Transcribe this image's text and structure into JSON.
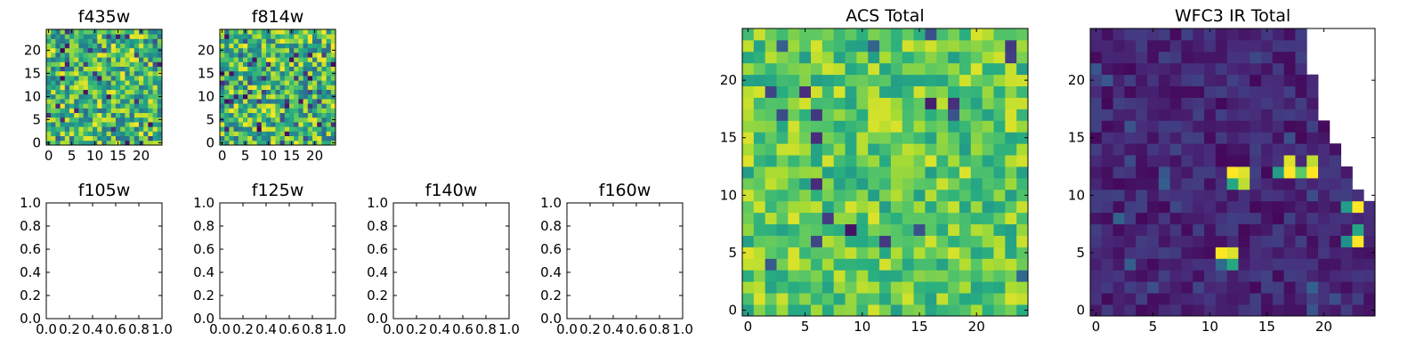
{
  "figure": {
    "colormap": "viridis",
    "background": "#ffffff",
    "axis_color": "#000000"
  },
  "chart_data": [
    {
      "id": "f435w",
      "type": "heatmap",
      "title": "f435w",
      "grid_size": [
        25,
        25
      ],
      "xlim": [
        -0.5,
        24.5
      ],
      "ylim": [
        -0.5,
        24.5
      ],
      "xticks": [
        0,
        5,
        10,
        15,
        20
      ],
      "yticks": [
        0,
        5,
        10,
        15,
        20
      ],
      "vrange": [
        0,
        1
      ],
      "empty": false,
      "description_seed": 435
    },
    {
      "id": "f814w",
      "type": "heatmap",
      "title": "f814w",
      "grid_size": [
        25,
        25
      ],
      "xlim": [
        -0.5,
        24.5
      ],
      "ylim": [
        -0.5,
        24.5
      ],
      "xticks": [
        0,
        5,
        10,
        15,
        20
      ],
      "yticks": [
        0,
        5,
        10,
        15,
        20
      ],
      "vrange": [
        0,
        1
      ],
      "empty": false,
      "description_seed": 814
    },
    {
      "id": "f105w",
      "type": "heatmap",
      "title": "f105w",
      "xlim": [
        0,
        1
      ],
      "ylim": [
        0,
        1
      ],
      "xticks": [
        "0.0",
        "0.2",
        "0.4",
        "0.6",
        "0.8",
        "1.0"
      ],
      "yticks": [
        "0.0",
        "0.2",
        "0.4",
        "0.6",
        "0.8",
        "1.0"
      ],
      "empty": true
    },
    {
      "id": "f125w",
      "type": "heatmap",
      "title": "f125w",
      "xlim": [
        0,
        1
      ],
      "ylim": [
        0,
        1
      ],
      "xticks": [
        "0.0",
        "0.2",
        "0.4",
        "0.6",
        "0.8",
        "1.0"
      ],
      "yticks": [
        "0.0",
        "0.2",
        "0.4",
        "0.6",
        "0.8",
        "1.0"
      ],
      "empty": true
    },
    {
      "id": "f140w",
      "type": "heatmap",
      "title": "f140w",
      "xlim": [
        0,
        1
      ],
      "ylim": [
        0,
        1
      ],
      "xticks": [
        "0.0",
        "0.2",
        "0.4",
        "0.6",
        "0.8",
        "1.0"
      ],
      "yticks": [
        "0.0",
        "0.2",
        "0.4",
        "0.6",
        "0.8",
        "1.0"
      ],
      "empty": true
    },
    {
      "id": "f160w",
      "type": "heatmap",
      "title": "f160w",
      "xlim": [
        0,
        1
      ],
      "ylim": [
        0,
        1
      ],
      "xticks": [
        "0.0",
        "0.2",
        "0.4",
        "0.6",
        "0.8",
        "1.0"
      ],
      "yticks": [
        "0.0",
        "0.2",
        "0.4",
        "0.6",
        "0.8",
        "1.0"
      ],
      "empty": true
    },
    {
      "id": "acs_total",
      "type": "heatmap",
      "title": "ACS Total",
      "grid_size": [
        25,
        25
      ],
      "xlim": [
        -0.5,
        24.5
      ],
      "ylim": [
        -0.5,
        24.5
      ],
      "xticks": [
        0,
        5,
        10,
        15,
        20
      ],
      "yticks": [
        0,
        5,
        10,
        15,
        20
      ],
      "vrange": [
        0,
        1
      ],
      "empty": false,
      "description_seed": 2024
    },
    {
      "id": "wfc3_ir_total",
      "type": "heatmap",
      "title": "WFC3 IR Total",
      "grid_size": [
        25,
        25
      ],
      "xlim": [
        -0.5,
        24.5
      ],
      "ylim": [
        -0.5,
        24.5
      ],
      "xticks": [
        0,
        5,
        10,
        15,
        20
      ],
      "yticks": [
        0,
        5,
        10,
        15,
        20
      ],
      "vrange": [
        0,
        1
      ],
      "empty": false,
      "description_seed": 3,
      "bright_pixels": [
        {
          "x": 12,
          "y": 12,
          "v": 1.0
        },
        {
          "x": 13,
          "y": 12,
          "v": 0.95
        },
        {
          "x": 12,
          "y": 11,
          "v": 0.6
        },
        {
          "x": 13,
          "y": 11,
          "v": 0.9
        },
        {
          "x": 16,
          "y": 12,
          "v": 0.55
        },
        {
          "x": 17,
          "y": 12,
          "v": 1.0
        },
        {
          "x": 18,
          "y": 12,
          "v": 0.75
        },
        {
          "x": 19,
          "y": 12,
          "v": 1.0
        },
        {
          "x": 17,
          "y": 13,
          "v": 0.95
        },
        {
          "x": 19,
          "y": 13,
          "v": 0.9
        },
        {
          "x": 11,
          "y": 5,
          "v": 1.0
        },
        {
          "x": 12,
          "y": 5,
          "v": 0.95
        },
        {
          "x": 12,
          "y": 4,
          "v": 0.6
        },
        {
          "x": 22,
          "y": 9,
          "v": 0.55
        },
        {
          "x": 23,
          "y": 9,
          "v": 1.0
        },
        {
          "x": 22,
          "y": 6,
          "v": 0.5
        },
        {
          "x": 23,
          "y": 6,
          "v": 1.0
        },
        {
          "x": 23,
          "y": 7,
          "v": 0.6
        },
        {
          "x": 11,
          "y": 4,
          "v": 0.35
        }
      ],
      "masked_region": "upper-right staircase (no data)",
      "mask_right_edge_by_row": {
        "24": 18,
        "23": 18,
        "22": 18,
        "21": 18,
        "20": 19,
        "19": 19,
        "18": 19,
        "17": 19,
        "16": 20,
        "15": 20,
        "14": 21,
        "13": 21,
        "12": 22,
        "11": 22,
        "10": 23,
        "9": 24
      }
    }
  ]
}
